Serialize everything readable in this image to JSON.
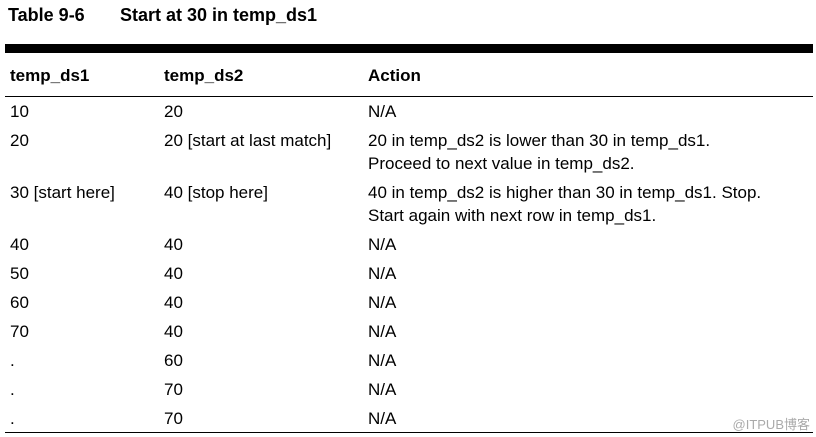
{
  "table": {
    "caption_number": "Table 9-6",
    "caption_title": "Start at 30 in temp_ds1",
    "headers": [
      "temp_ds1",
      "temp_ds2",
      "Action"
    ],
    "rows": [
      {
        "ds1": "10",
        "ds2": "20",
        "action": [
          "N/A"
        ]
      },
      {
        "ds1": "20",
        "ds2": "20 [start at last match]",
        "action": [
          "20 in temp_ds2 is lower than 30 in temp_ds1.",
          "Proceed to next value in temp_ds2."
        ]
      },
      {
        "ds1": "30 [start here]",
        "ds2": "40 [stop here]",
        "action": [
          "40 in temp_ds2 is higher than 30 in temp_ds1. Stop.",
          "Start again with next row in temp_ds1."
        ]
      },
      {
        "ds1": "40",
        "ds2": "40",
        "action": [
          "N/A"
        ]
      },
      {
        "ds1": "50",
        "ds2": "40",
        "action": [
          "N/A"
        ]
      },
      {
        "ds1": "60",
        "ds2": "40",
        "action": [
          "N/A"
        ]
      },
      {
        "ds1": "70",
        "ds2": "40",
        "action": [
          "N/A"
        ]
      },
      {
        "ds1": ".",
        "ds2": "60",
        "action": [
          "N/A"
        ]
      },
      {
        "ds1": ".",
        "ds2": "70",
        "action": [
          "N/A"
        ]
      },
      {
        "ds1": ".",
        "ds2": "70",
        "action": [
          "N/A"
        ]
      }
    ]
  },
  "watermark": "@ITPUB博客"
}
